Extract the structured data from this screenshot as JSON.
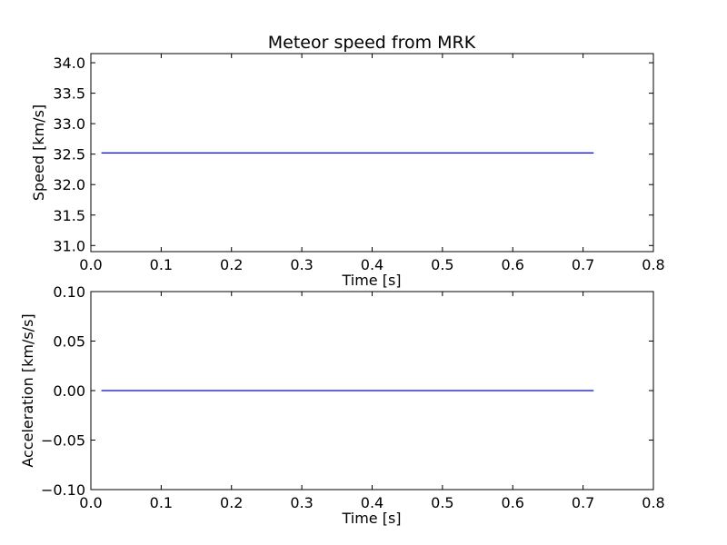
{
  "chart_data": [
    {
      "type": "line",
      "title": "Meteor speed from  MRK",
      "xlabel": "Time [s]",
      "ylabel": "Speed [km/s]",
      "xlim": [
        0.0,
        0.8
      ],
      "ylim": [
        30.9,
        34.15
      ],
      "xticks": [
        "0.0",
        "0.1",
        "0.2",
        "0.3",
        "0.4",
        "0.5",
        "0.6",
        "0.7",
        "0.8"
      ],
      "yticks": [
        "31.0",
        "31.5",
        "32.0",
        "32.5",
        "33.0",
        "33.5",
        "34.0"
      ],
      "grid": false,
      "series": [
        {
          "color": "#0000ff",
          "x": [
            0.015,
            0.715
          ],
          "y": [
            32.52,
            32.52
          ]
        }
      ]
    },
    {
      "type": "line",
      "title": "",
      "xlabel": "Time [s]",
      "ylabel": "Acceleration [km/s/s]",
      "xlim": [
        0.0,
        0.8
      ],
      "ylim": [
        -0.1,
        0.1
      ],
      "xticks": [
        "0.0",
        "0.1",
        "0.2",
        "0.3",
        "0.4",
        "0.5",
        "0.6",
        "0.7",
        "0.8"
      ],
      "yticks": [
        "−0.10",
        "−0.05",
        "0.00",
        "0.05",
        "0.10"
      ],
      "grid": false,
      "series": [
        {
          "color": "#0000ff",
          "x": [
            0.015,
            0.715
          ],
          "y": [
            0.0,
            0.0
          ]
        }
      ]
    }
  ]
}
